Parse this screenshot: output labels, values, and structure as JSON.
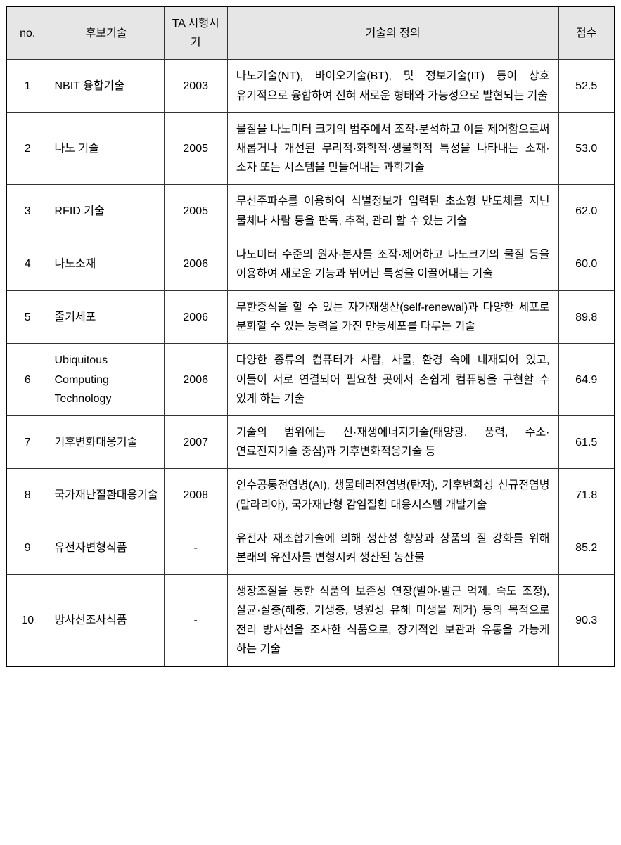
{
  "table": {
    "headers": {
      "no": "no.",
      "tech": "후보기술",
      "year": "TA 시행시기",
      "def": "기술의 정의",
      "score": "점수"
    },
    "rows": [
      {
        "no": "1",
        "tech": "NBIT 융합기술",
        "year": "2003",
        "def": "나노기술(NT), 바이오기술(BT), 및 정보기술(IT) 등이 상호 유기적으로 융합하여 전혀 새로운 형태와 가능성으로 발현되는 기술",
        "score": "52.5"
      },
      {
        "no": "2",
        "tech": "나노 기술",
        "year": "2005",
        "def": "물질을 나노미터 크기의 범주에서 조작·분석하고 이를 제어함으로써 새롭거나 개선된 무리적·화학적·생물학적 특성을 나타내는 소재·소자 또는 시스템을 만들어내는 과학기술",
        "score": "53.0"
      },
      {
        "no": "3",
        "tech": "RFID 기술",
        "year": "2005",
        "def": "무선주파수를 이용하여 식별정보가 입력된 초소형 반도체를 지닌 물체나 사람 등을 판독, 추적, 관리 할 수 있는 기술",
        "score": "62.0"
      },
      {
        "no": "4",
        "tech": "나노소재",
        "year": "2006",
        "def": "나노미터 수준의 원자·분자를 조작·제어하고 나노크기의 물질 등을 이용하여 새로운 기능과 뛰어난 특성을 이끌어내는 기술",
        "score": "60.0"
      },
      {
        "no": "5",
        "tech": "줄기세포",
        "year": "2006",
        "def": "무한증식을 할 수 있는 자가재생산(self-renewal)과 다양한 세포로 분화할 수 있는 능력을 가진 만능세포를 다루는 기술",
        "score": "89.8"
      },
      {
        "no": "6",
        "tech": "Ubiquitous Computing Technology",
        "year": "2006",
        "def": "다양한 종류의 컴퓨터가 사람, 사물, 환경 속에 내재되어 있고, 이들이 서로 연결되어 필요한 곳에서 손쉽게 컴퓨팅을 구현할 수 있게 하는 기술",
        "score": "64.9"
      },
      {
        "no": "7",
        "tech": "기후변화대응기술",
        "year": "2007",
        "def": "기술의 범위에는 신·재생에너지기술(태양광, 풍력, 수소·연료전지기술 중심)과 기후변화적응기술 등",
        "score": "61.5"
      },
      {
        "no": "8",
        "tech": "국가재난질환대응기술",
        "year": "2008",
        "def": "인수공통전염병(AI), 생물테러전염병(탄저), 기후변화성 신규전염병(말라리아), 국가재난형 감염질환 대응시스템 개발기술",
        "score": "71.8"
      },
      {
        "no": "9",
        "tech": "유전자변형식품",
        "year": "-",
        "def": "유전자 재조합기술에 의해 생산성 향상과 상품의 질 강화를 위해 본래의 유전자를 변형시켜 생산된 농산물",
        "score": "85.2"
      },
      {
        "no": "10",
        "tech": "방사선조사식품",
        "year": "-",
        "def": "생장조절을 통한 식품의 보존성 연장(발아·발근 억제, 숙도 조정), 살균·살충(해충, 기생충, 병원성 유해 미생물 제거) 등의 목적으로 전리 방사선을 조사한 식품으로, 장기적인 보관과 유통을 가능케 하는 기술",
        "score": "90.3"
      }
    ]
  }
}
